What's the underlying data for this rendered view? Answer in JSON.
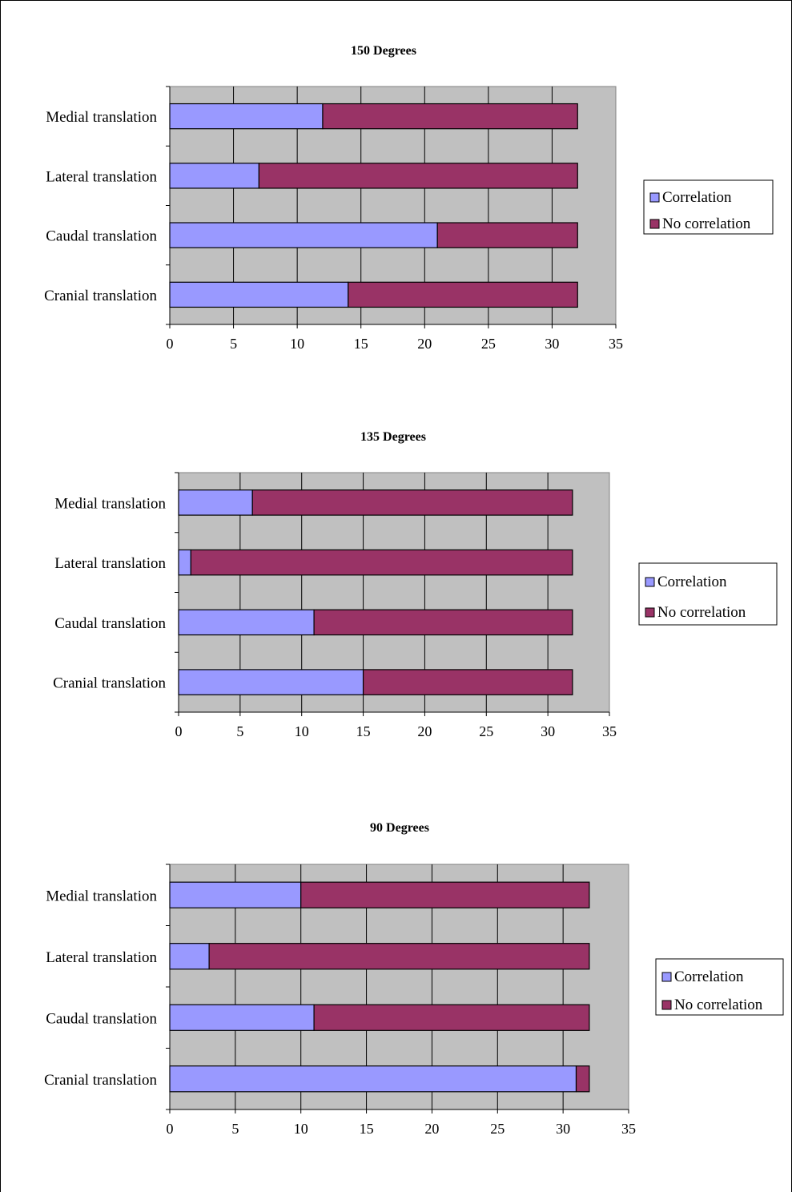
{
  "chart_data": [
    {
      "type": "bar",
      "orientation": "horizontal",
      "stacked": true,
      "title": "150 Degrees",
      "categories": [
        "Cranial translation",
        "Caudal translation",
        "Lateral translation",
        "Medial translation"
      ],
      "series": [
        {
          "name": "Correlation",
          "color": "#9999ff",
          "values": [
            14,
            21,
            7,
            12
          ]
        },
        {
          "name": "No correlation",
          "color": "#993366",
          "values": [
            18,
            11,
            25,
            20
          ]
        }
      ],
      "xlim": [
        0,
        35
      ],
      "xticks": [
        "0",
        "5",
        "10",
        "15",
        "20",
        "25",
        "30",
        "35"
      ],
      "plot_background": "#c0c0c0",
      "grid": true,
      "legend": "right"
    },
    {
      "type": "bar",
      "orientation": "horizontal",
      "stacked": true,
      "title": "135 Degrees",
      "categories": [
        "Cranial translation",
        "Caudal translation",
        "Lateral translation",
        "Medial translation"
      ],
      "series": [
        {
          "name": "Correlation",
          "color": "#9999ff",
          "values": [
            15,
            11,
            1,
            6
          ]
        },
        {
          "name": "No correlation",
          "color": "#993366",
          "values": [
            17,
            21,
            31,
            26
          ]
        }
      ],
      "xlim": [
        0,
        35
      ],
      "xticks": [
        "0",
        "5",
        "10",
        "15",
        "20",
        "25",
        "30",
        "35"
      ],
      "plot_background": "#c0c0c0",
      "grid": true,
      "legend": "right"
    },
    {
      "type": "bar",
      "orientation": "horizontal",
      "stacked": true,
      "title": "90 Degrees",
      "categories": [
        "Cranial translation",
        "Caudal translation",
        "Lateral translation",
        "Medial translation"
      ],
      "series": [
        {
          "name": "Correlation",
          "color": "#9999ff",
          "values": [
            31,
            11,
            3,
            10
          ]
        },
        {
          "name": "No correlation",
          "color": "#993366",
          "values": [
            1,
            21,
            29,
            22
          ]
        }
      ],
      "xlim": [
        0,
        35
      ],
      "xticks": [
        "0",
        "5",
        "10",
        "15",
        "20",
        "25",
        "30",
        "35"
      ],
      "plot_background": "#c0c0c0",
      "grid": true,
      "legend": "right"
    }
  ]
}
